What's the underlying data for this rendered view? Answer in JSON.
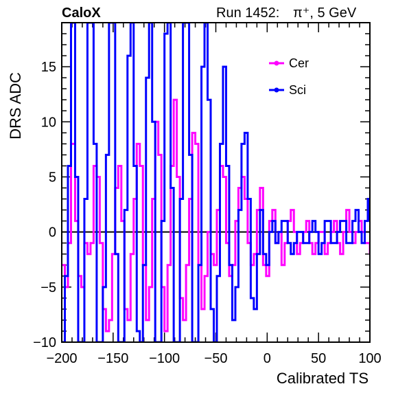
{
  "header": {
    "experiment": "CaloX",
    "run": "Run 1452:",
    "particle": "π⁺, 5 GeV"
  },
  "chart_data": {
    "type": "line",
    "xlabel": "Calibrated TS",
    "ylabel": "DRS ADC",
    "xlim": [
      -200,
      100
    ],
    "ylim": [
      -10,
      19
    ],
    "xticks": [
      -200,
      -150,
      -100,
      -50,
      0,
      50,
      100
    ],
    "yticks": [
      -10,
      -5,
      0,
      5,
      10,
      15
    ],
    "reference_line_y": 0,
    "legend_position": "top-right",
    "series": [
      {
        "name": "Cer",
        "color": "#ff00ff",
        "x": [
          -200,
          -197,
          -194,
          -191,
          -189,
          -187,
          -184,
          -181,
          -178,
          -175,
          -172,
          -169,
          -166,
          -163,
          -160,
          -157,
          -154,
          -151,
          -148,
          -145,
          -142,
          -139,
          -136,
          -133,
          -130,
          -127,
          -124,
          -121,
          -118,
          -115,
          -112,
          -109,
          -106,
          -103,
          -100,
          -97,
          -94,
          -91,
          -88,
          -85,
          -82,
          -79,
          -76,
          -73,
          -70,
          -67,
          -64,
          -61,
          -58,
          -55,
          -52,
          -49,
          -46,
          -43,
          -40,
          -37,
          -34,
          -31,
          -28,
          -25,
          -22,
          -19,
          -16,
          -13,
          -10,
          -7,
          -4,
          -1,
          2,
          5,
          8,
          11,
          14,
          17,
          20,
          23,
          26,
          29,
          32,
          35,
          38,
          41,
          44,
          47,
          50,
          53,
          56,
          59,
          62,
          65,
          68,
          71,
          74,
          77,
          80,
          83,
          86,
          89,
          92,
          95,
          98,
          100
        ],
        "y": [
          -3,
          -5,
          -1,
          8,
          8,
          1,
          -4,
          -5,
          -1,
          -2,
          -1,
          6,
          5,
          -1,
          -7,
          -9,
          -8,
          -2,
          4,
          6,
          1,
          -7,
          -8,
          -2,
          3,
          8,
          6,
          -3,
          -8,
          -5,
          3,
          10,
          7,
          -5,
          -9,
          -3,
          6,
          12,
          5,
          -6,
          -8,
          -3,
          3,
          9,
          8,
          -3,
          -7,
          -4,
          0,
          -2,
          -3,
          2,
          6,
          5,
          -1,
          -4,
          -3,
          1,
          4,
          5,
          3,
          -1,
          -3,
          -2,
          2,
          4,
          -3,
          -4,
          1,
          2,
          -1,
          0,
          -3,
          -1,
          1,
          2,
          0,
          -2,
          -1,
          0,
          1,
          -1,
          -2,
          -1,
          0,
          0,
          -2,
          -1,
          0,
          1,
          -1,
          -2,
          0,
          2,
          0,
          -1,
          0,
          1,
          0,
          -1,
          -1,
          -2
        ]
      },
      {
        "name": "Sci",
        "color": "#0000ff",
        "x": [
          -200,
          -197,
          -194,
          -191,
          -189,
          -187,
          -184,
          -181,
          -178,
          -175,
          -172,
          -169,
          -166,
          -163,
          -160,
          -157,
          -154,
          -151,
          -148,
          -145,
          -142,
          -139,
          -136,
          -133,
          -130,
          -127,
          -124,
          -121,
          -118,
          -115,
          -112,
          -109,
          -106,
          -103,
          -100,
          -97,
          -94,
          -91,
          -88,
          -85,
          -82,
          -79,
          -76,
          -73,
          -70,
          -67,
          -64,
          -61,
          -58,
          -55,
          -52,
          -49,
          -46,
          -43,
          -40,
          -37,
          -34,
          -31,
          -28,
          -25,
          -22,
          -19,
          -16,
          -13,
          -10,
          -7,
          -4,
          -1,
          2,
          5,
          8,
          11,
          14,
          17,
          20,
          23,
          26,
          29,
          32,
          35,
          38,
          41,
          44,
          47,
          50,
          53,
          56,
          59,
          62,
          65,
          68,
          71,
          74,
          77,
          80,
          83,
          86,
          89,
          92,
          95,
          98,
          100
        ],
        "y": [
          -10,
          -4,
          6,
          19,
          19,
          5,
          -10,
          -10,
          3,
          19,
          19,
          8,
          -10,
          -10,
          -5,
          7,
          19,
          19,
          -2,
          -10,
          -10,
          2,
          16,
          19,
          6,
          -9,
          -10,
          -3,
          14,
          19,
          10,
          -10,
          -10,
          1,
          18,
          19,
          4,
          -10,
          -10,
          3,
          19,
          19,
          7,
          -10,
          -10,
          -3,
          15,
          19,
          12,
          -7,
          -10,
          -4,
          8,
          15,
          6,
          -3,
          -8,
          -5,
          2,
          8,
          9,
          3,
          -6,
          -7,
          -2,
          2,
          -2,
          -3,
          0,
          1,
          -1,
          0,
          1,
          1,
          -1,
          -2,
          -1,
          0,
          0,
          -1,
          -1,
          0,
          1,
          0,
          -2,
          -1,
          1,
          1,
          -1,
          -1,
          0,
          1,
          1,
          -1,
          -1,
          1,
          2,
          0,
          -1,
          1,
          3,
          1
        ]
      }
    ]
  }
}
